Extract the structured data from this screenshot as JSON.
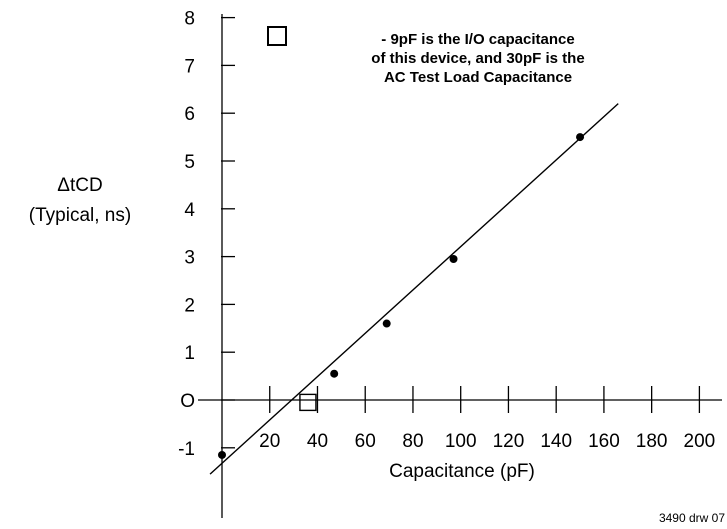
{
  "chart_data": {
    "type": "line",
    "xlabel": "Capacitance (pF)",
    "ylabel_line1": "ΔtCD",
    "ylabel_line2": "(Typical, ns)",
    "x_ticks": [
      20,
      40,
      60,
      80,
      100,
      120,
      140,
      160,
      180,
      200
    ],
    "y_ticks": [
      "8",
      "7",
      "6",
      "5",
      "4",
      "3",
      "2",
      "1",
      "O",
      "-1"
    ],
    "xlim": [
      0,
      210
    ],
    "ylim": [
      -1.6,
      8
    ],
    "series": [
      {
        "points": [
          {
            "x": 0,
            "y": -1.15
          },
          {
            "x": 47,
            "y": 0.55
          },
          {
            "x": 69,
            "y": 1.6
          },
          {
            "x": 97,
            "y": 2.95
          },
          {
            "x": 150,
            "y": 5.5
          }
        ],
        "line": [
          {
            "x": -5,
            "y": -1.55
          },
          {
            "x": 166,
            "y": 6.2
          }
        ]
      }
    ],
    "reference_marker": {
      "x": 36,
      "y": -0.05
    },
    "annotation": {
      "lines": [
        "- 9pF is the I/O capacitance",
        "of this device, and 30pF is the",
        "AC Test Load Capacitance"
      ]
    },
    "footer": "3490 drw 07"
  }
}
